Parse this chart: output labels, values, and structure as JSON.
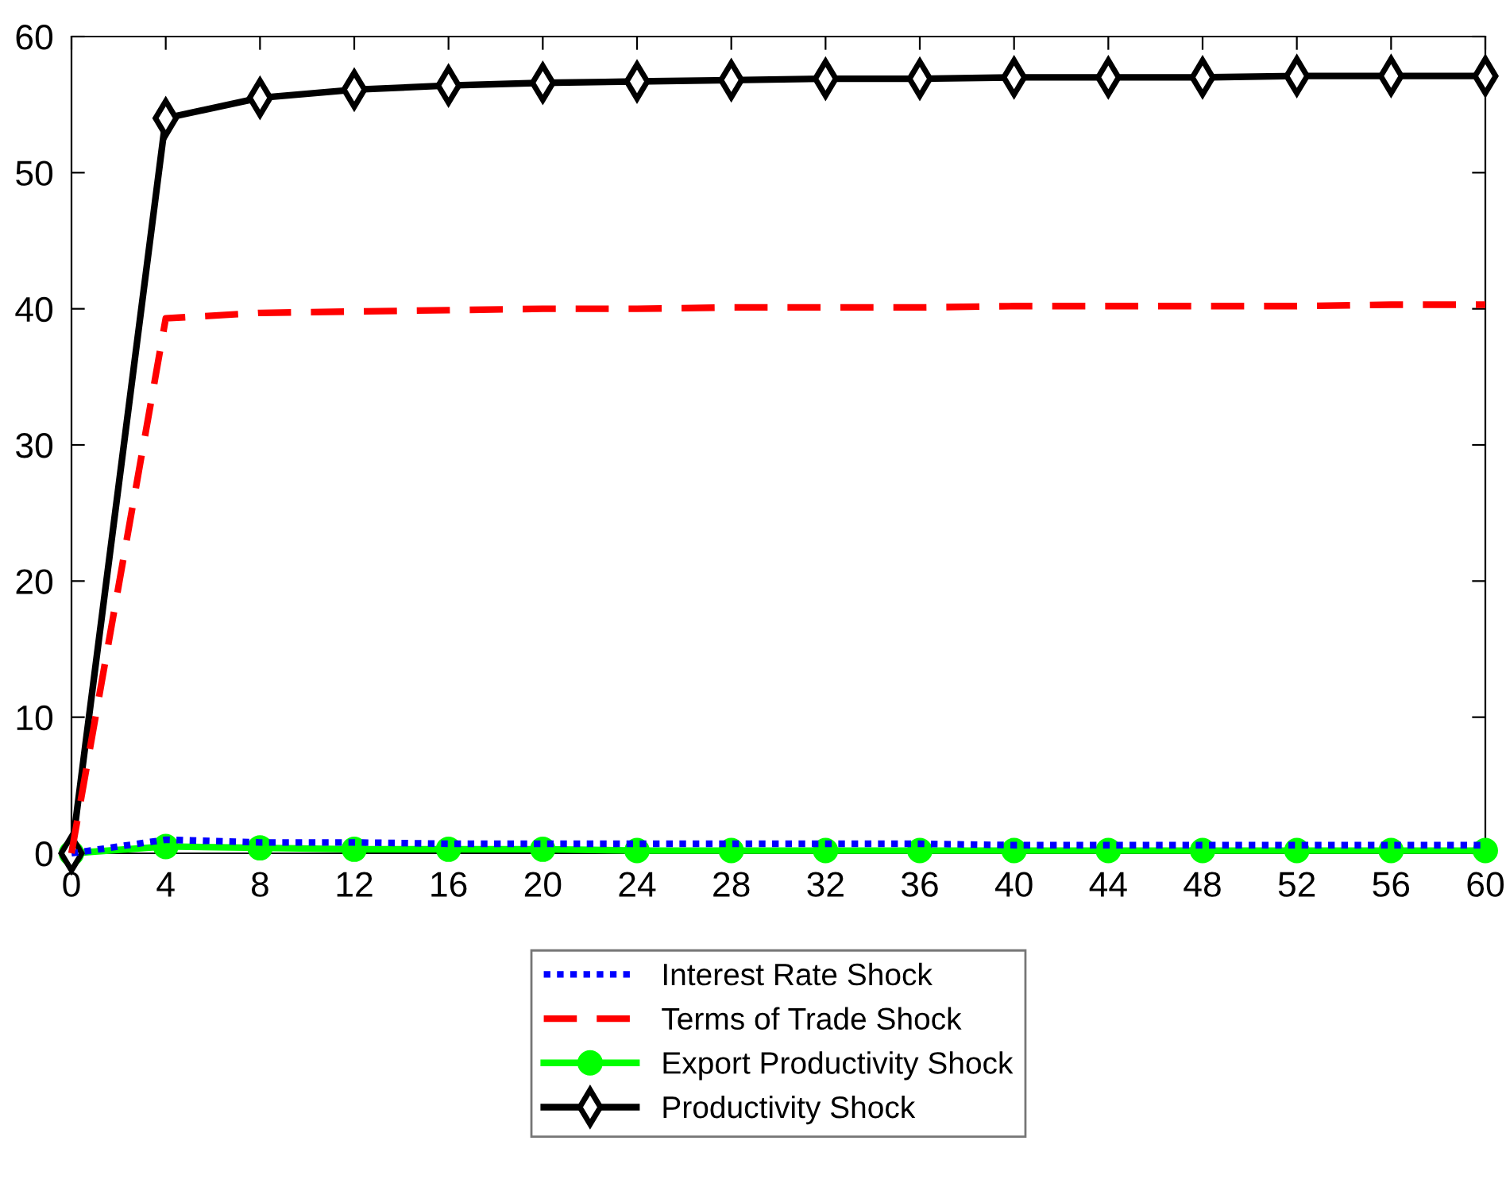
{
  "chart_data": {
    "type": "line",
    "x": [
      0,
      4,
      8,
      12,
      16,
      20,
      24,
      28,
      32,
      36,
      40,
      44,
      48,
      52,
      56,
      60
    ],
    "series": [
      {
        "name": "Interest Rate Shock",
        "color": "#0000ff",
        "line_style": "dotted",
        "marker": "none",
        "values": [
          0,
          1.0,
          0.8,
          0.8,
          0.7,
          0.7,
          0.7,
          0.7,
          0.7,
          0.7,
          0.6,
          0.6,
          0.6,
          0.6,
          0.6,
          0.6
        ]
      },
      {
        "name": "Terms of Trade Shock",
        "color": "#ff0000",
        "line_style": "dashed",
        "marker": "none",
        "values": [
          0,
          39.3,
          39.7,
          39.8,
          39.9,
          40.0,
          40.0,
          40.1,
          40.1,
          40.1,
          40.2,
          40.2,
          40.2,
          40.2,
          40.3,
          40.3
        ]
      },
      {
        "name": "Export Productivity Shock",
        "color": "#00ff00",
        "line_style": "solid",
        "marker": "circle",
        "values": [
          0,
          0.5,
          0.4,
          0.3,
          0.3,
          0.3,
          0.2,
          0.2,
          0.2,
          0.2,
          0.2,
          0.2,
          0.2,
          0.2,
          0.2,
          0.2
        ]
      },
      {
        "name": "Productivity Shock",
        "color": "#000000",
        "line_style": "solid",
        "marker": "diamond",
        "values": [
          0,
          54.0,
          55.5,
          56.1,
          56.4,
          56.6,
          56.7,
          56.8,
          56.9,
          56.9,
          57.0,
          57.0,
          57.0,
          57.1,
          57.1,
          57.1
        ]
      }
    ],
    "xlim": [
      0,
      60
    ],
    "xticks": [
      0,
      4,
      8,
      12,
      16,
      20,
      24,
      28,
      32,
      36,
      40,
      44,
      48,
      52,
      56,
      60
    ],
    "ylim": [
      0,
      60
    ],
    "yticks": [
      0,
      10,
      20,
      30,
      40,
      50,
      60
    ],
    "grid": false,
    "legend": "bottom"
  }
}
